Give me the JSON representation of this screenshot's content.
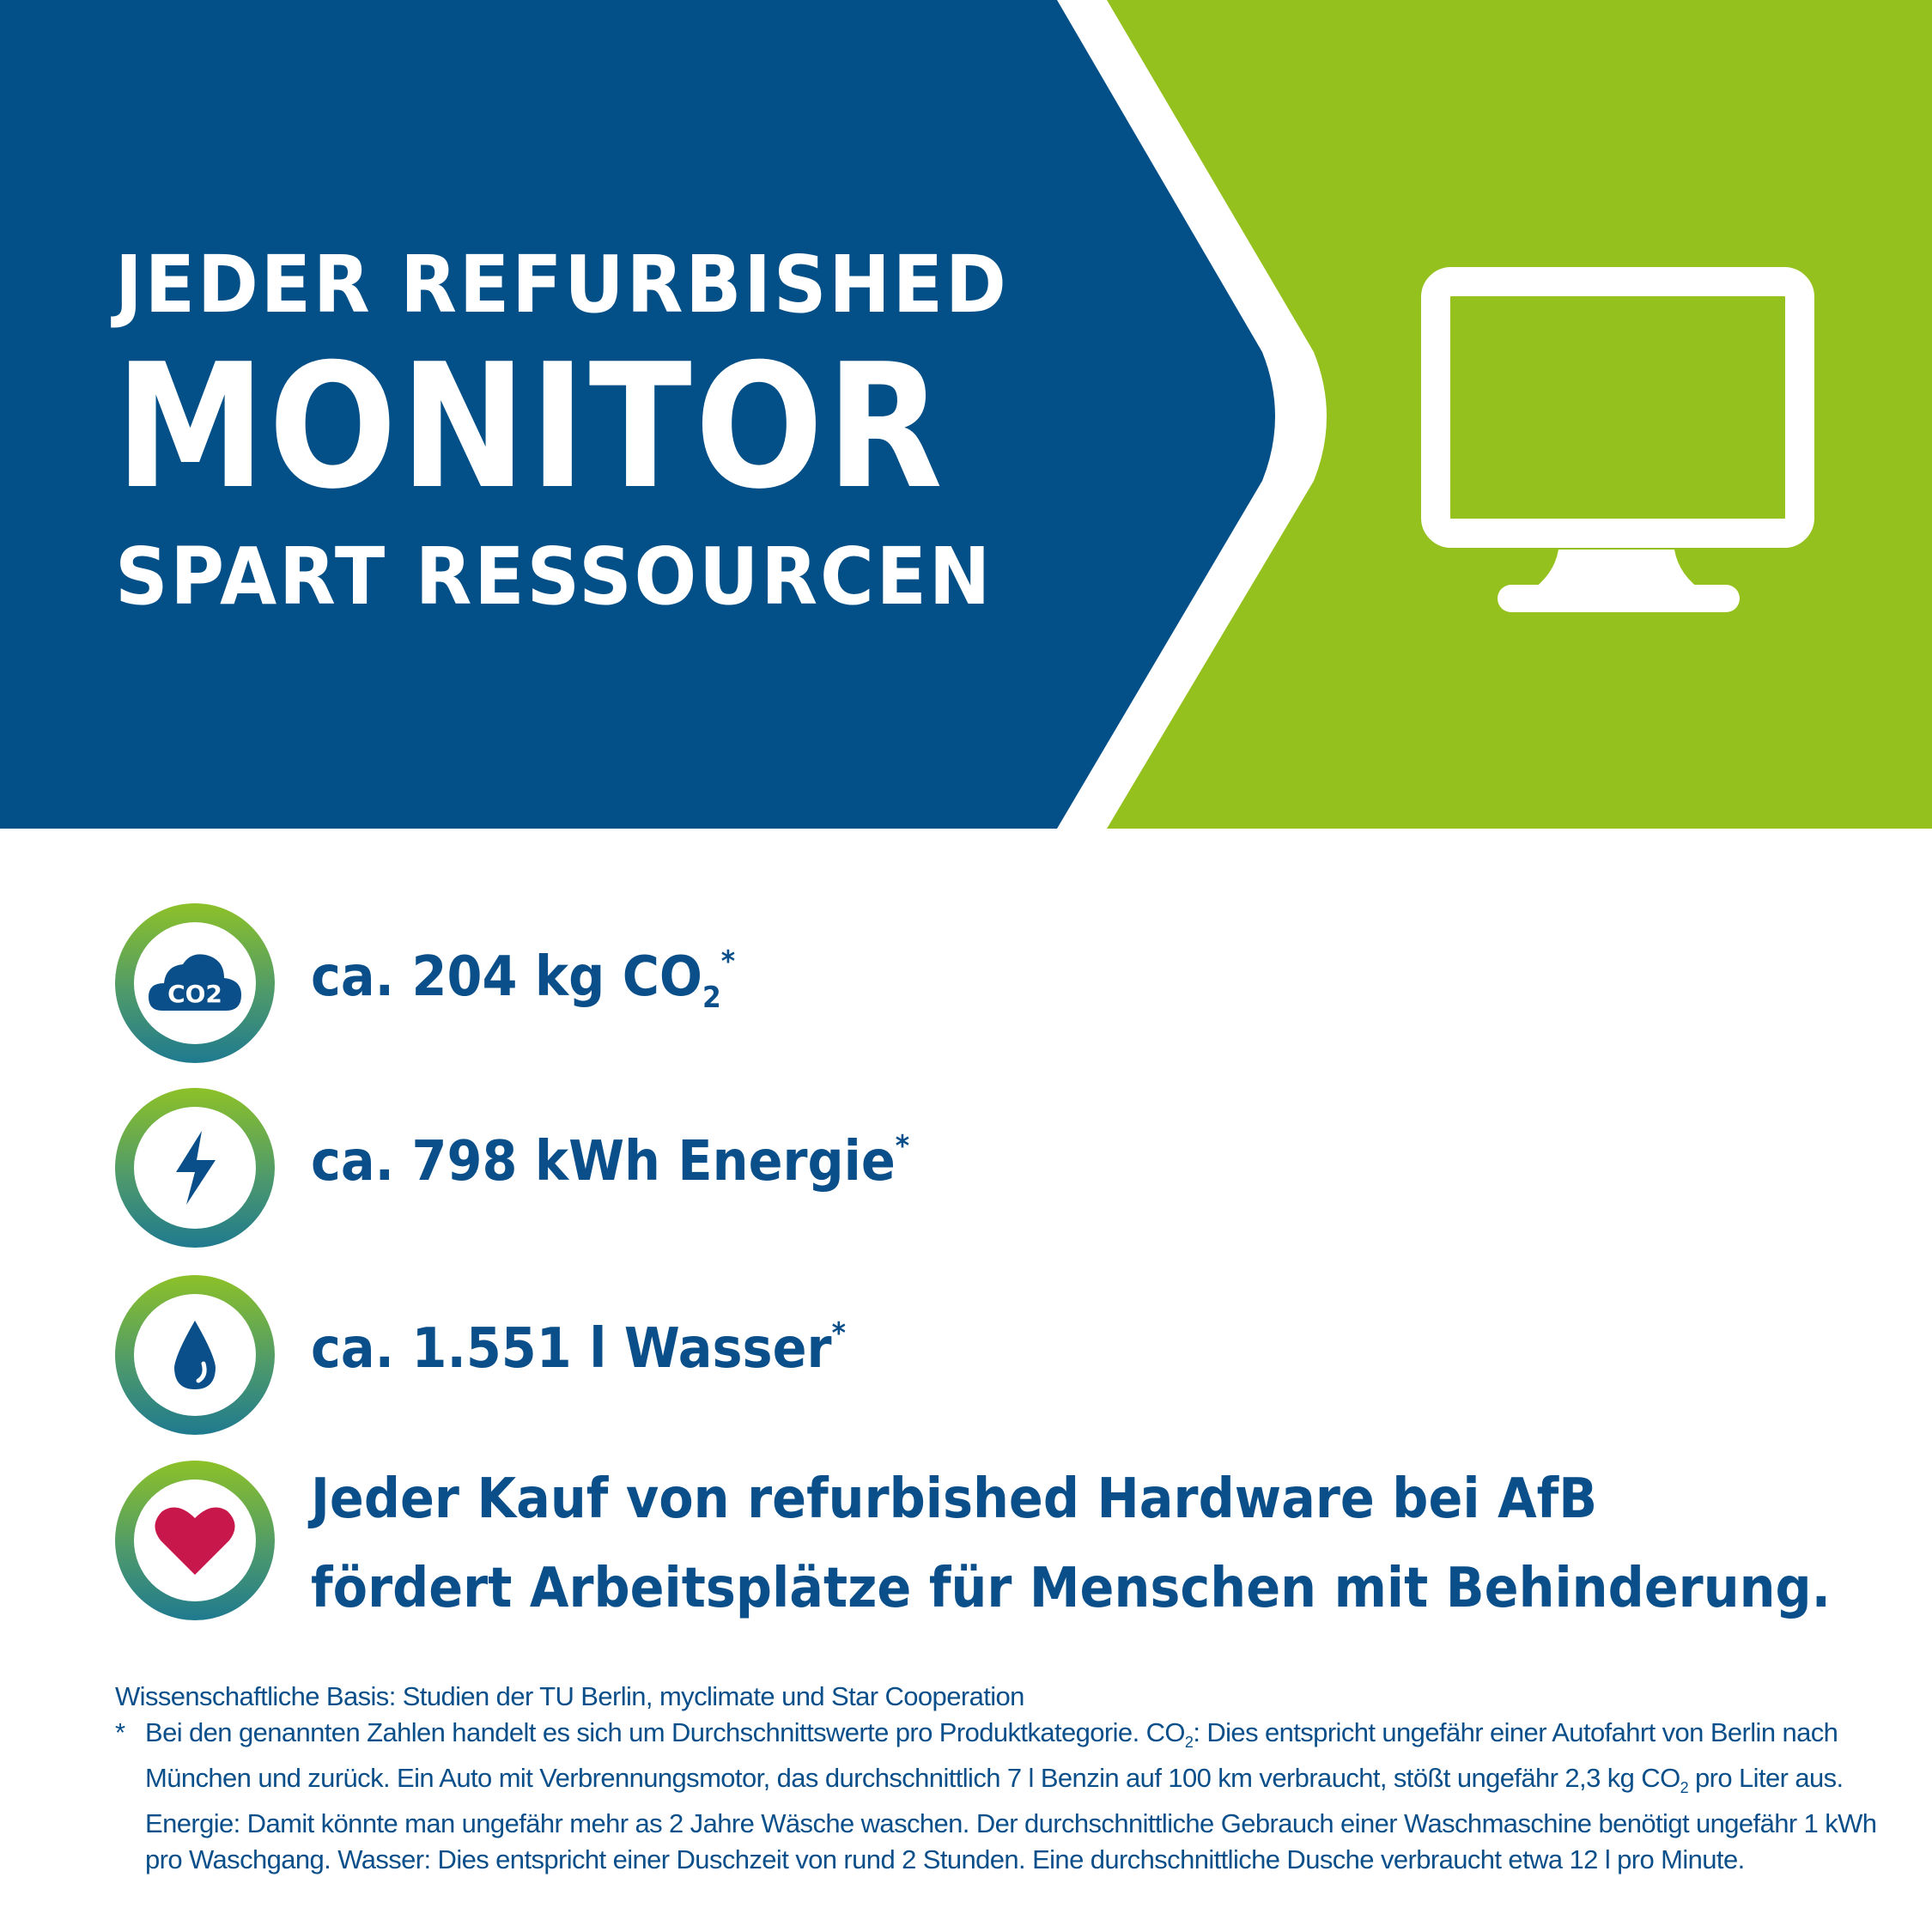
{
  "header": {
    "line1": "JEDER REFURBISHED",
    "line2": "MONITOR",
    "line3": "SPART RESSOURCEN",
    "icon": "monitor-icon",
    "colors": {
      "blue": "#034f87",
      "green": "#95c11f",
      "white": "#ffffff"
    }
  },
  "stats": [
    {
      "icon": "co2-cloud-icon",
      "icon_label": "CO2",
      "prefix": "ca. 204 kg CO",
      "sub": "2",
      "star": "*"
    },
    {
      "icon": "lightning-icon",
      "prefix": "ca. 798 kWh Energie",
      "star": "*"
    },
    {
      "icon": "water-drop-icon",
      "prefix": "ca. 1.551 l Wasser",
      "star": "*"
    },
    {
      "icon": "heart-icon",
      "line1": "Jeder Kauf von refurbished Hardware bei AfB",
      "line2": "fördert Arbeitsplätze für Menschen mit Behinderung."
    }
  ],
  "footer": {
    "basis": "Wissenschaftliche Basis: Studien der TU Berlin, myclimate und Star Cooperation",
    "star": "*",
    "note_a": "Bei den genannten Zahlen handelt es sich um Durchschnittswerte pro Produktkategorie. CO",
    "note_sub1": "2",
    "note_b": ": Dies entspricht ungefähr einer Autofahrt von Berlin nach München und zurück. Ein Auto mit Verbrennungsmotor, das durchschnittlich 7 l Benzin auf 100 km verbraucht, stößt ungefähr 2,3 kg CO",
    "note_sub2": "2",
    "note_c": " pro Liter aus. Energie: Damit könnte man ungefähr mehr as 2 Jahre Wäsche waschen. Der durchschnittliche Gebrauch einer Waschmaschine benötigt ungefähr 1 kWh pro Waschgang. Wasser: Dies entspricht einer Duschzeit von rund 2 Stunden. Eine durchschnittliche Dusche verbraucht etwa 12 l pro Minute."
  }
}
